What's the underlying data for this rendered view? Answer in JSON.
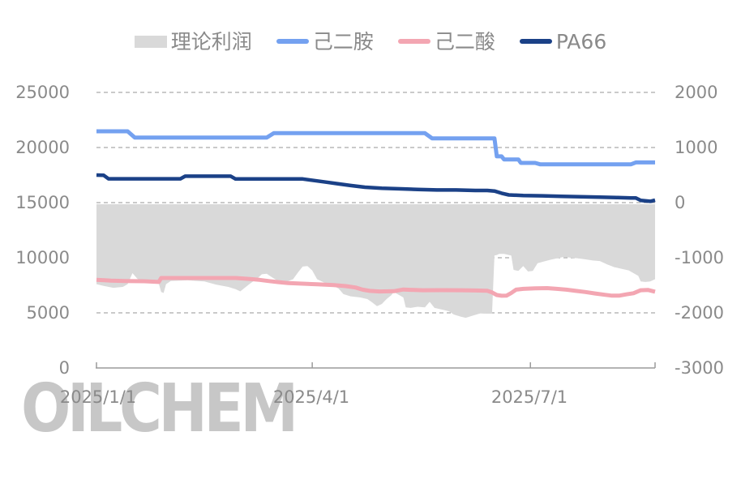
{
  "legend": {
    "items": [
      {
        "label": "理论利润",
        "swatch": "area"
      },
      {
        "label": "己二胺",
        "swatch": "line"
      },
      {
        "label": "己二酸",
        "swatch": "line"
      },
      {
        "label": "PA66",
        "swatch": "line"
      }
    ]
  },
  "axes": {
    "left": {
      "ticks": [
        "25000",
        "20000",
        "15000",
        "10000",
        "5000",
        "0"
      ]
    },
    "right": {
      "ticks": [
        "2000",
        "1000",
        "0",
        "-1000",
        "-2000",
        "-3000"
      ]
    },
    "x": {
      "labels": [
        "2025/1/1",
        "2025/4/1",
        "2025/7/1"
      ]
    }
  },
  "watermark": {
    "text": "OILCHEM"
  },
  "chart_data": {
    "type": "line+area",
    "title": "",
    "x_unit": "days since 2025/1/1",
    "x_range": [
      0,
      233
    ],
    "x_tick_labels": [
      "2025/1/1",
      "2025/4/1",
      "2025/7/1"
    ],
    "x_tick_days": [
      0,
      90,
      181
    ],
    "axis_tick_days": [
      0,
      90,
      181,
      233
    ],
    "left_axis": {
      "min": 0,
      "max": 25000,
      "ticks": [
        0,
        5000,
        10000,
        15000,
        20000,
        25000
      ]
    },
    "right_axis": {
      "min": -3000,
      "max": 2000,
      "ticks": [
        -3000,
        -2000,
        -1000,
        0,
        1000,
        2000
      ]
    },
    "grid": "horizontal-dashed",
    "legend_position": "top-center",
    "colors": {
      "grid": "#ababab",
      "axis": "#9b9b9b"
    },
    "series": [
      {
        "name": "理论利润",
        "type": "area",
        "axis": "right",
        "color": "#d9d9d9",
        "points": [
          [
            0,
            -1480
          ],
          [
            3,
            -1510
          ],
          [
            7,
            -1545
          ],
          [
            11,
            -1530
          ],
          [
            13,
            -1480
          ],
          [
            15,
            -1280
          ],
          [
            17,
            -1380
          ],
          [
            19,
            -1430
          ],
          [
            23,
            -1440
          ],
          [
            26,
            -1470
          ],
          [
            27,
            -1620
          ],
          [
            28,
            -1640
          ],
          [
            29,
            -1480
          ],
          [
            31,
            -1420
          ],
          [
            38,
            -1410
          ],
          [
            45,
            -1430
          ],
          [
            50,
            -1490
          ],
          [
            55,
            -1530
          ],
          [
            58,
            -1570
          ],
          [
            60,
            -1610
          ],
          [
            62,
            -1540
          ],
          [
            64,
            -1470
          ],
          [
            67,
            -1380
          ],
          [
            69,
            -1300
          ],
          [
            71,
            -1290
          ],
          [
            73,
            -1350
          ],
          [
            76,
            -1430
          ],
          [
            79,
            -1440
          ],
          [
            82,
            -1390
          ],
          [
            84,
            -1270
          ],
          [
            86,
            -1160
          ],
          [
            88,
            -1150
          ],
          [
            90,
            -1230
          ],
          [
            92,
            -1390
          ],
          [
            95,
            -1450
          ],
          [
            98,
            -1490
          ],
          [
            101,
            -1560
          ],
          [
            103,
            -1660
          ],
          [
            106,
            -1700
          ],
          [
            110,
            -1720
          ],
          [
            113,
            -1750
          ],
          [
            115,
            -1810
          ],
          [
            117,
            -1880
          ],
          [
            119,
            -1840
          ],
          [
            121,
            -1750
          ],
          [
            123,
            -1680
          ],
          [
            124,
            -1620
          ],
          [
            126,
            -1670
          ],
          [
            128,
            -1720
          ],
          [
            129,
            -1900
          ],
          [
            131,
            -1910
          ],
          [
            134,
            -1890
          ],
          [
            137,
            -1900
          ],
          [
            139,
            -1800
          ],
          [
            141,
            -1910
          ],
          [
            144,
            -1940
          ],
          [
            147,
            -1970
          ],
          [
            149,
            -2030
          ],
          [
            152,
            -2070
          ],
          [
            154,
            -2090
          ],
          [
            157,
            -2050
          ],
          [
            160,
            -2010
          ],
          [
            163,
            -2015
          ],
          [
            165,
            -2015
          ],
          [
            166,
            -960
          ],
          [
            167,
            -950
          ],
          [
            168,
            -930
          ],
          [
            170,
            -930
          ],
          [
            172,
            -950
          ],
          [
            173,
            -960
          ],
          [
            174,
            -1220
          ],
          [
            176,
            -1240
          ],
          [
            178,
            -1150
          ],
          [
            180,
            -1250
          ],
          [
            182,
            -1240
          ],
          [
            184,
            -1100
          ],
          [
            186,
            -1075
          ],
          [
            189,
            -1040
          ],
          [
            192,
            -1010
          ],
          [
            195,
            -985
          ],
          [
            198,
            -1000
          ],
          [
            201,
            -1010
          ],
          [
            204,
            -1030
          ],
          [
            207,
            -1050
          ],
          [
            210,
            -1060
          ],
          [
            213,
            -1120
          ],
          [
            216,
            -1170
          ],
          [
            219,
            -1200
          ],
          [
            222,
            -1230
          ],
          [
            224,
            -1280
          ],
          [
            226,
            -1330
          ],
          [
            227,
            -1430
          ],
          [
            229,
            -1440
          ],
          [
            231,
            -1430
          ],
          [
            233,
            -1390
          ]
        ]
      },
      {
        "name": "己二胺",
        "type": "line",
        "axis": "left",
        "color": "#74a1f0",
        "width": 5,
        "points": [
          [
            0,
            21470
          ],
          [
            13,
            21470
          ],
          [
            16,
            20900
          ],
          [
            71,
            20900
          ],
          [
            74,
            21300
          ],
          [
            137,
            21300
          ],
          [
            140,
            20830
          ],
          [
            166,
            20830
          ],
          [
            167,
            19200
          ],
          [
            169,
            19200
          ],
          [
            170,
            18920
          ],
          [
            176,
            18920
          ],
          [
            177,
            18600
          ],
          [
            183,
            18600
          ],
          [
            185,
            18480
          ],
          [
            223,
            18480
          ],
          [
            225,
            18650
          ],
          [
            233,
            18650
          ]
        ]
      },
      {
        "name": "己二酸",
        "type": "line",
        "axis": "left",
        "color": "#f3a6b2",
        "width": 5,
        "points": [
          [
            0,
            8000
          ],
          [
            6,
            7930
          ],
          [
            12,
            7890
          ],
          [
            20,
            7870
          ],
          [
            26,
            7800
          ],
          [
            27,
            8160
          ],
          [
            58,
            8160
          ],
          [
            63,
            8090
          ],
          [
            68,
            7990
          ],
          [
            72,
            7880
          ],
          [
            76,
            7790
          ],
          [
            80,
            7700
          ],
          [
            86,
            7650
          ],
          [
            92,
            7590
          ],
          [
            99,
            7520
          ],
          [
            104,
            7430
          ],
          [
            108,
            7300
          ],
          [
            111,
            7100
          ],
          [
            114,
            6990
          ],
          [
            118,
            6940
          ],
          [
            124,
            6960
          ],
          [
            128,
            7120
          ],
          [
            131,
            7090
          ],
          [
            136,
            7050
          ],
          [
            144,
            7060
          ],
          [
            152,
            7050
          ],
          [
            158,
            7030
          ],
          [
            163,
            7000
          ],
          [
            165,
            6850
          ],
          [
            167,
            6620
          ],
          [
            169,
            6550
          ],
          [
            171,
            6560
          ],
          [
            173,
            6800
          ],
          [
            175,
            7100
          ],
          [
            178,
            7180
          ],
          [
            183,
            7230
          ],
          [
            188,
            7240
          ],
          [
            192,
            7180
          ],
          [
            196,
            7100
          ],
          [
            200,
            6990
          ],
          [
            204,
            6890
          ],
          [
            208,
            6760
          ],
          [
            212,
            6640
          ],
          [
            215,
            6560
          ],
          [
            218,
            6560
          ],
          [
            221,
            6680
          ],
          [
            224,
            6780
          ],
          [
            227,
            7050
          ],
          [
            230,
            7080
          ],
          [
            233,
            6920
          ]
        ]
      },
      {
        "name": "PA66",
        "type": "line",
        "axis": "left",
        "color": "#1b4187",
        "width": 4.5,
        "points": [
          [
            0,
            17500
          ],
          [
            3,
            17480
          ],
          [
            5,
            17160
          ],
          [
            35,
            17160
          ],
          [
            37,
            17400
          ],
          [
            56,
            17400
          ],
          [
            58,
            17150
          ],
          [
            86,
            17150
          ],
          [
            91,
            17000
          ],
          [
            96,
            16850
          ],
          [
            101,
            16700
          ],
          [
            106,
            16550
          ],
          [
            112,
            16400
          ],
          [
            119,
            16300
          ],
          [
            127,
            16250
          ],
          [
            134,
            16200
          ],
          [
            142,
            16150
          ],
          [
            150,
            16150
          ],
          [
            158,
            16100
          ],
          [
            163,
            16100
          ],
          [
            166,
            16050
          ],
          [
            169,
            15850
          ],
          [
            172,
            15700
          ],
          [
            178,
            15650
          ],
          [
            186,
            15620
          ],
          [
            194,
            15570
          ],
          [
            202,
            15540
          ],
          [
            210,
            15500
          ],
          [
            217,
            15460
          ],
          [
            223,
            15420
          ],
          [
            225,
            15420
          ],
          [
            227,
            15200
          ],
          [
            231,
            15120
          ],
          [
            233,
            15230
          ]
        ]
      }
    ]
  }
}
